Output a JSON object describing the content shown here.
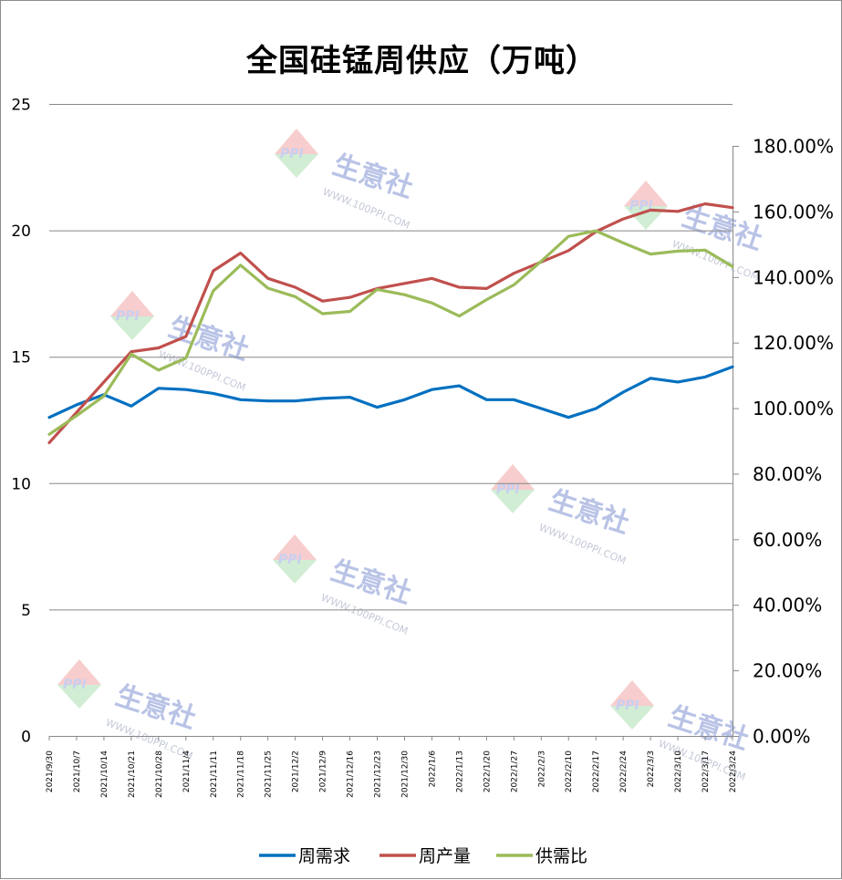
{
  "chart_data": {
    "type": "line",
    "title": "全国硅锰周供应（万吨）",
    "x": [
      "2021/9/30",
      "2021/10/7",
      "2021/10/14",
      "2021/10/21",
      "2021/10/28",
      "2021/11/4",
      "2021/11/11",
      "2021/11/18",
      "2021/11/25",
      "2021/12/2",
      "2021/12/9",
      "2021/12/16",
      "2021/12/23",
      "2021/12/30",
      "2022/1/6",
      "2022/1/13",
      "2022/1/20",
      "2022/1/27",
      "2022/2/3",
      "2022/2/10",
      "2022/2/17",
      "2022/2/24",
      "2022/3/3",
      "2022/3/10",
      "2022/3/17",
      "2022/3/24"
    ],
    "y_left": {
      "range": [
        0,
        25
      ],
      "ticks": [
        "0",
        "5",
        "10",
        "15",
        "20",
        "25"
      ]
    },
    "y_right": {
      "range": [
        0,
        180
      ],
      "ticks": [
        "0.00%",
        "20.00%",
        "40.00%",
        "60.00%",
        "80.00%",
        "100.00%",
        "120.00%",
        "140.00%",
        "160.00%",
        "180.00%"
      ]
    },
    "grid": "horizontal",
    "legend_position": "bottom",
    "series": [
      {
        "name": "周需求",
        "axis": "left",
        "color": "#0070c0",
        "values": [
          12.6,
          13.1,
          13.5,
          13.05,
          13.75,
          13.7,
          13.55,
          13.3,
          13.25,
          13.25,
          13.35,
          13.4,
          13.0,
          13.3,
          13.7,
          13.85,
          13.3,
          13.3,
          12.95,
          12.6,
          12.95,
          13.6,
          14.15,
          14.0,
          14.2,
          14.6
        ]
      },
      {
        "name": "周产量",
        "axis": "left",
        "color": "#c0504d",
        "values": [
          11.6,
          12.8,
          14.0,
          15.2,
          15.35,
          15.8,
          18.4,
          19.1,
          18.1,
          17.75,
          17.2,
          17.35,
          17.7,
          17.9,
          18.1,
          17.75,
          17.7,
          18.3,
          18.75,
          19.2,
          19.95,
          20.45,
          20.8,
          20.75,
          21.05,
          20.9
        ]
      },
      {
        "name": "供需比",
        "axis": "right",
        "color": "#9bbb59",
        "values": [
          92.0,
          97.7,
          103.7,
          116.5,
          111.6,
          115.3,
          135.8,
          143.6,
          136.6,
          134.0,
          128.8,
          129.5,
          136.2,
          134.6,
          132.1,
          128.1,
          133.1,
          137.6,
          144.8,
          152.4,
          154.1,
          150.4,
          147.0,
          147.9,
          148.2,
          143.2
        ]
      }
    ]
  },
  "watermark": {
    "text": "生意社",
    "url": "WWW.100PPI.COM",
    "badge": "PPI"
  }
}
